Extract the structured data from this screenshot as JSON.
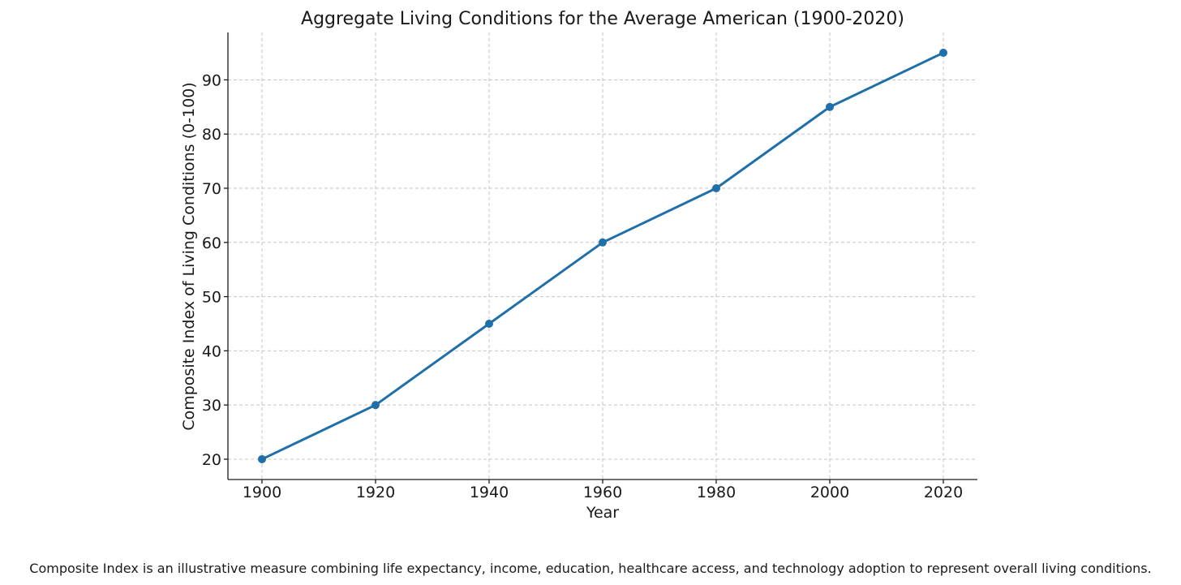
{
  "chart_data": {
    "type": "line",
    "title": "Aggregate Living Conditions for the Average American (1900-2020)",
    "xlabel": "Year",
    "ylabel": "Composite Index of Living Conditions (0-100)",
    "x": [
      1900,
      1920,
      1940,
      1960,
      1980,
      2000,
      2020
    ],
    "series": [
      {
        "values": [
          20,
          30,
          45,
          60,
          70,
          85,
          95
        ],
        "color": "#1f6fa8"
      }
    ],
    "xticks": [
      "1900",
      "1920",
      "1940",
      "1960",
      "1980",
      "2000",
      "2020"
    ],
    "yticks": [
      "20",
      "30",
      "40",
      "50",
      "60",
      "70",
      "80",
      "90"
    ],
    "xlim": [
      1894,
      2026
    ],
    "ylim": [
      16.25,
      98.75
    ],
    "grid": true,
    "markers": true
  },
  "caption": "Composite Index is an illustrative measure combining life expectancy, income, education, healthcare access, and technology adoption to represent overall living conditions."
}
